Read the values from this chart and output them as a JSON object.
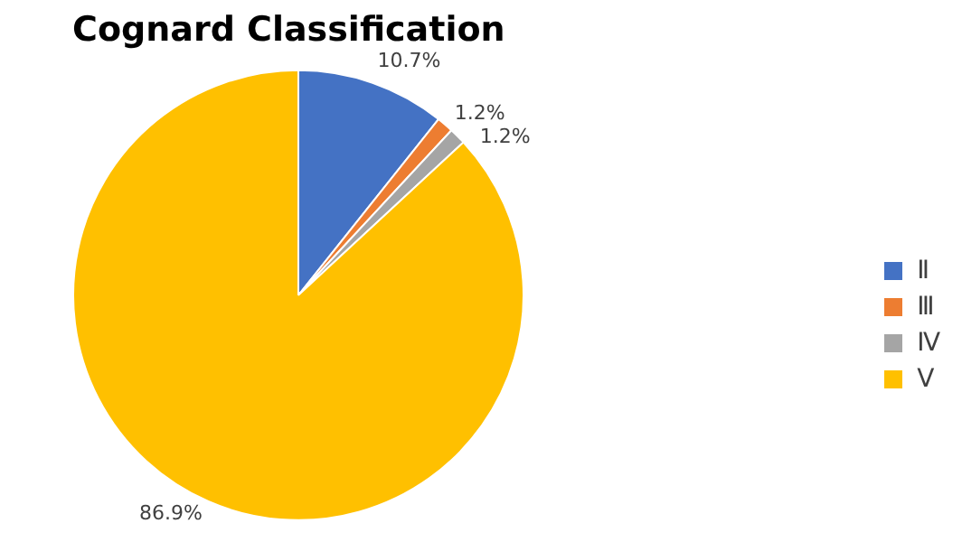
{
  "chart_data": {
    "type": "pie",
    "title": "Cognard Classification",
    "categories": [
      "Ⅱ",
      "Ⅲ",
      "Ⅳ",
      "Ⅴ"
    ],
    "values": [
      10.7,
      1.2,
      1.2,
      86.9
    ],
    "value_labels": [
      "10.7%",
      "1.2%",
      "1.2%",
      "86.9%"
    ],
    "colors": [
      "#4472c4",
      "#ed7d31",
      "#a5a5a5",
      "#ffc000"
    ],
    "legend": "right"
  }
}
